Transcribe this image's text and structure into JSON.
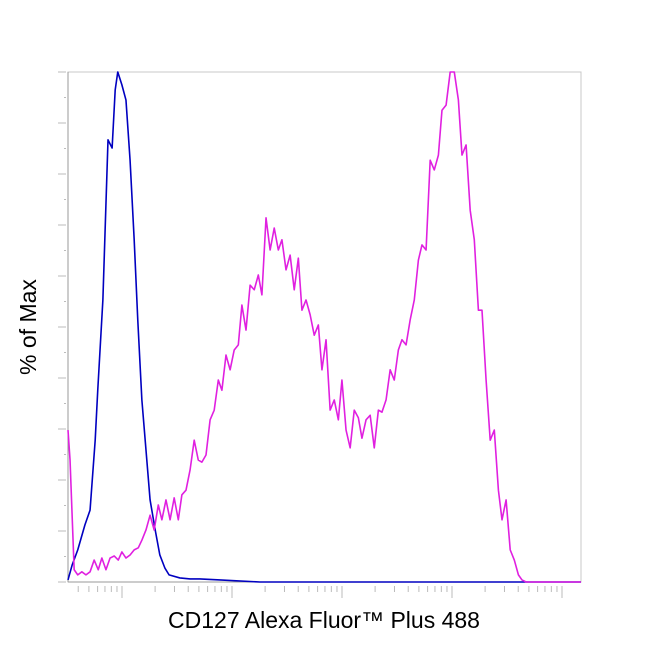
{
  "chart_data": {
    "type": "line",
    "xlabel": "CD127 Alexa Fluor™ Plus 488",
    "ylabel": "% of Max",
    "xlim": [
      0,
      100
    ],
    "ylim": [
      0,
      100
    ],
    "series": [
      {
        "color": "#0000c0",
        "x": [
          0,
          0.8,
          1.9,
          3.3,
          4.3,
          5.3,
          5.8,
          6.8,
          7.8,
          8.6,
          9.2,
          9.7,
          10.5,
          11.3,
          12.1,
          12.9,
          13.6,
          14.4,
          15.2,
          16.0,
          17.0,
          17.9,
          18.9,
          19.7,
          21.8,
          23.8,
          25.7,
          29.6,
          37.4,
          100
        ],
        "values": [
          0.4,
          3.3,
          6.3,
          11.2,
          14.1,
          27.8,
          37.6,
          55.3,
          86.7,
          85.1,
          96.5,
          100,
          97.5,
          94.5,
          82.7,
          67.1,
          51.4,
          35.7,
          25.9,
          16.1,
          10.2,
          5.3,
          2.7,
          1.4,
          0.8,
          0.6,
          0.6,
          0.4,
          0,
          0
        ]
      },
      {
        "color": "#e020e0",
        "x": [
          0,
          0.4,
          1.2,
          1.9,
          2.7,
          3.5,
          4.3,
          5.1,
          5.9,
          6.6,
          7.4,
          8.2,
          9.0,
          9.8,
          10.5,
          11.3,
          12.1,
          12.9,
          13.7,
          14.4,
          15.2,
          16.0,
          16.8,
          17.6,
          18.3,
          19.1,
          19.9,
          20.7,
          21.5,
          22.2,
          23.0,
          23.8,
          24.6,
          25.4,
          26.1,
          26.9,
          27.7,
          28.5,
          29.3,
          30.0,
          30.8,
          31.6,
          32.4,
          33.2,
          33.9,
          34.7,
          35.5,
          36.3,
          37.1,
          37.8,
          38.6,
          39.4,
          40.2,
          41.0,
          41.7,
          42.5,
          43.3,
          44.1,
          44.9,
          45.6,
          46.4,
          47.2,
          48.0,
          48.8,
          49.5,
          50.3,
          51.1,
          51.9,
          52.7,
          53.4,
          54.2,
          55.0,
          55.8,
          56.6,
          57.3,
          58.1,
          58.9,
          59.7,
          60.5,
          61.2,
          62.0,
          62.8,
          63.6,
          64.4,
          65.1,
          65.9,
          66.7,
          67.5,
          68.3,
          69.0,
          69.8,
          70.6,
          71.4,
          72.2,
          72.9,
          73.7,
          74.5,
          75.3,
          76.1,
          76.8,
          77.6,
          78.4,
          79.2,
          80.0,
          80.7,
          81.5,
          82.3,
          83.1,
          83.9,
          84.6,
          85.4,
          86.2,
          87.0,
          87.8,
          88.5,
          89.3,
          100
        ],
        "values": [
          29.8,
          23.9,
          2.4,
          1.4,
          2.0,
          1.4,
          2.0,
          4.3,
          2.4,
          4.7,
          2.4,
          4.7,
          5.1,
          4.3,
          5.9,
          4.7,
          5.3,
          6.3,
          6.7,
          8.2,
          10.2,
          13.1,
          10.2,
          15.1,
          12.2,
          16.1,
          12.2,
          16.5,
          12.2,
          17.1,
          18.0,
          22.0,
          27.8,
          23.9,
          23.5,
          24.9,
          31.8,
          33.7,
          39.6,
          37.6,
          44.5,
          41.6,
          45.5,
          46.5,
          54.3,
          49.4,
          58.2,
          57.3,
          60.2,
          56.3,
          71.4,
          65.1,
          69.4,
          65.1,
          67.1,
          61.2,
          64.1,
          57.3,
          63.5,
          53.3,
          55.3,
          52.4,
          48.4,
          50.4,
          41.6,
          47.5,
          33.7,
          35.7,
          31.8,
          39.6,
          29.8,
          26.3,
          33.7,
          32.2,
          28.2,
          31.8,
          32.7,
          26.3,
          33.7,
          33.3,
          35.7,
          41.6,
          39.6,
          45.5,
          47.5,
          46.5,
          51.4,
          55.3,
          63.1,
          66.1,
          65.1,
          82.7,
          80.8,
          83.7,
          92.5,
          93.5,
          100,
          100,
          94.5,
          83.7,
          85.7,
          72.9,
          67.1,
          53.3,
          53.3,
          39.6,
          27.8,
          29.8,
          18.0,
          12.2,
          16.1,
          6.3,
          4.3,
          1.4,
          0.4,
          0,
          0
        ]
      }
    ]
  }
}
